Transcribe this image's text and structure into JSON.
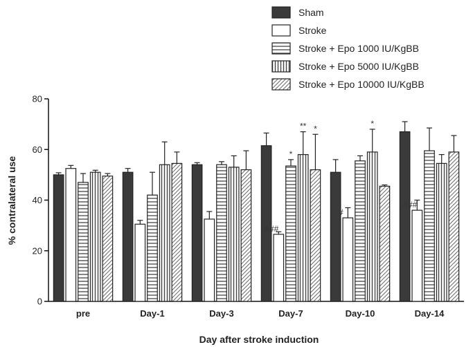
{
  "chart_data": {
    "type": "bar",
    "xlabel": "Day after stroke induction",
    "ylabel": "% contralateral use",
    "ylim": [
      0,
      80
    ],
    "yticks": [
      0,
      20,
      40,
      60,
      80
    ],
    "categories": [
      "pre",
      "Day-1",
      "Day-3",
      "Day-7",
      "Day-10",
      "Day-14"
    ],
    "legend_position": "top-right",
    "series": [
      {
        "name": "Sham",
        "pattern": "solid-dark",
        "color": "#3a3a3a",
        "values": [
          50,
          51,
          54,
          61.5,
          51,
          67
        ],
        "errors": [
          0.8,
          1.5,
          0.8,
          5,
          5,
          4
        ]
      },
      {
        "name": "Stroke",
        "pattern": "white",
        "color": "#ffffff",
        "values": [
          52.5,
          30.5,
          32.5,
          26.5,
          33,
          36
        ],
        "errors": [
          1.2,
          1.5,
          3,
          1,
          4,
          4
        ]
      },
      {
        "name": "Stroke + Epo 1000 IU/KgBB",
        "pattern": "horizontal-stripes",
        "color": "#555555",
        "values": [
          47,
          42,
          54,
          53.5,
          55.5,
          59.5
        ],
        "errors": [
          3.5,
          9,
          1.2,
          2.5,
          2,
          9
        ]
      },
      {
        "name": "Stroke + Epo 5000 IU/KgBB",
        "pattern": "vertical-stripes",
        "color": "#555555",
        "values": [
          51,
          54,
          53,
          58,
          59,
          54.5
        ],
        "errors": [
          0.8,
          9,
          4.5,
          9,
          9,
          3.5
        ]
      },
      {
        "name": "Stroke + Epo 10000 IU/KgBB",
        "pattern": "diagonal-stripes",
        "color": "#777777",
        "values": [
          49.5,
          54.5,
          52,
          52,
          45.5,
          59
        ],
        "errors": [
          1,
          4.5,
          7.5,
          14,
          0.5,
          6.5
        ]
      }
    ],
    "annotations": [
      {
        "category": 3,
        "series": 1,
        "text": "###"
      },
      {
        "category": 3,
        "series": 2,
        "text": "*"
      },
      {
        "category": 3,
        "series": 3,
        "text": "**"
      },
      {
        "category": 3,
        "series": 4,
        "text": "*"
      },
      {
        "category": 4,
        "series": 1,
        "text": "#"
      },
      {
        "category": 4,
        "series": 3,
        "text": "*"
      },
      {
        "category": 5,
        "series": 1,
        "text": "###"
      }
    ]
  }
}
